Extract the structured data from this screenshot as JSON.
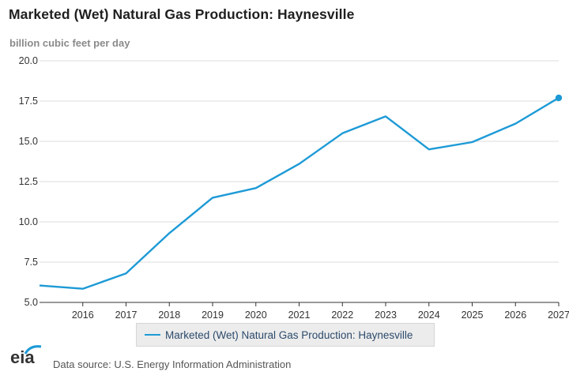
{
  "page": {
    "title": "Marketed (Wet) Natural Gas Production: Haynesville",
    "units": "billion cubic feet per day",
    "source": "Data source: U.S. Energy Information Administration",
    "logo_text": "eia"
  },
  "colors": {
    "series": "#1d9ad6",
    "grid": "#dcdcdc",
    "axis": "#333333",
    "tick_text": "#333333"
  },
  "chart_data": {
    "type": "line",
    "title": "Marketed (Wet) Natural Gas Production: Haynesville",
    "ylabel": "billion cubic feet per day",
    "xlabel": "",
    "xlim": [
      2015.0,
      2027
    ],
    "ylim": [
      5.0,
      20.0
    ],
    "yticks": [
      "5.0",
      "7.5",
      "10.0",
      "12.5",
      "15.0",
      "17.5",
      "20.0"
    ],
    "xticks": [
      "2016",
      "2017",
      "2018",
      "2019",
      "2020",
      "2021",
      "2022",
      "2023",
      "2024",
      "2025",
      "2026",
      "2027"
    ],
    "grid": true,
    "legend": "bottom",
    "series": [
      {
        "name": "Marketed (Wet) Natural Gas Production: Haynesville",
        "x": [
          2015.0,
          2016,
          2017,
          2018,
          2019,
          2020,
          2021,
          2022,
          2023,
          2024,
          2025,
          2026,
          2027
        ],
        "y": [
          6.05,
          5.85,
          6.8,
          9.3,
          11.5,
          12.1,
          13.6,
          15.5,
          16.55,
          14.5,
          14.95,
          16.1,
          17.7
        ]
      }
    ],
    "annotations": [
      "last point marked"
    ]
  }
}
